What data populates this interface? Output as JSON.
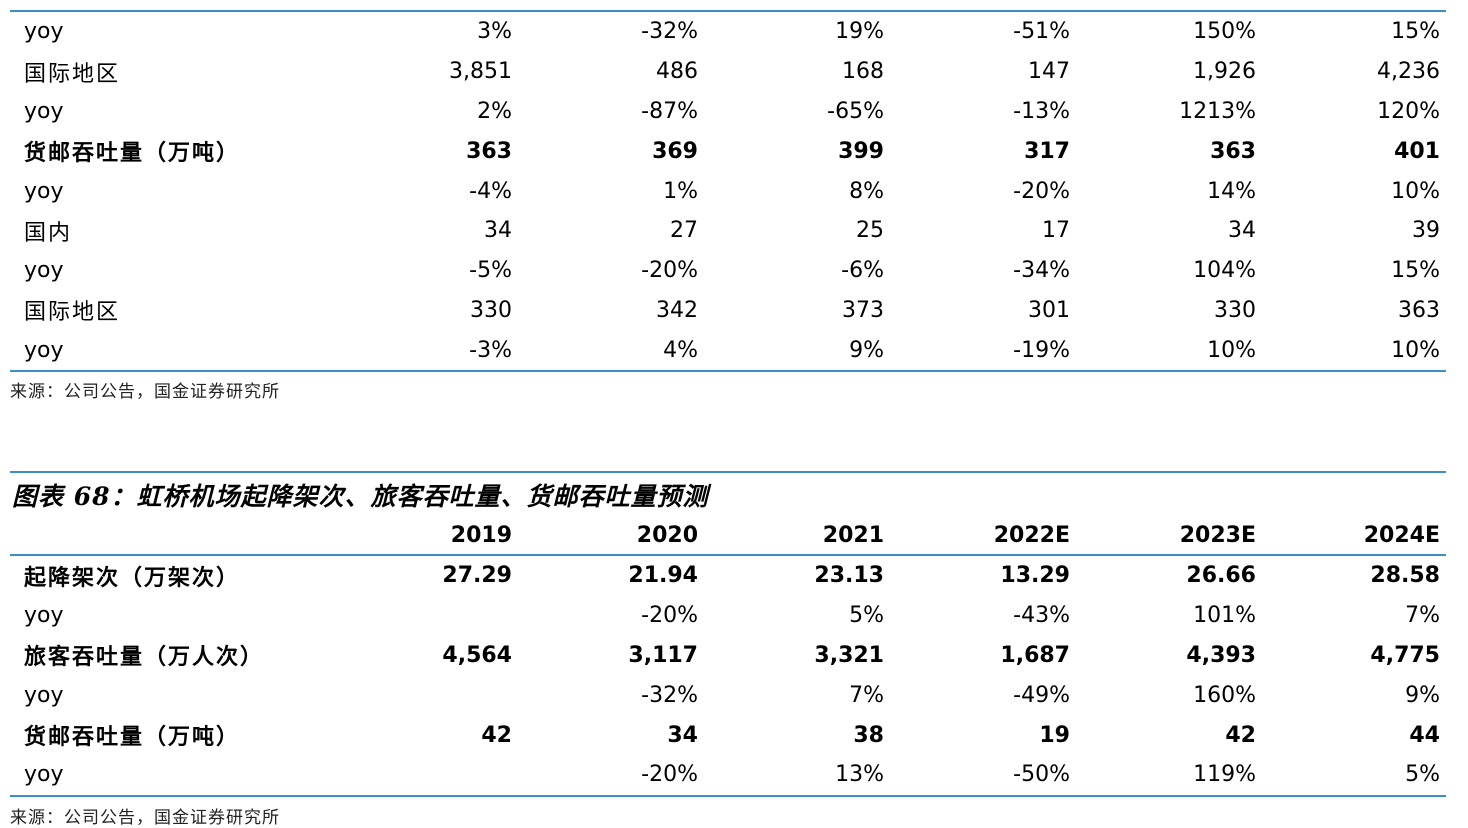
{
  "table1": {
    "rows": [
      {
        "label": "yoy",
        "values": [
          "3%",
          "-32%",
          "19%",
          "-51%",
          "150%",
          "15%"
        ],
        "bold": false
      },
      {
        "label": "国际地区",
        "values": [
          "3,851",
          "486",
          "168",
          "147",
          "1,926",
          "4,236"
        ],
        "bold": false
      },
      {
        "label": "yoy",
        "values": [
          "2%",
          "-87%",
          "-65%",
          "-13%",
          "1213%",
          "120%"
        ],
        "bold": false
      },
      {
        "label": "货邮吞吐量（万吨）",
        "values": [
          "363",
          "369",
          "399",
          "317",
          "363",
          "401"
        ],
        "bold": true
      },
      {
        "label": "yoy",
        "values": [
          "-4%",
          "1%",
          "8%",
          "-20%",
          "14%",
          "10%"
        ],
        "bold": false
      },
      {
        "label": "国内",
        "values": [
          "34",
          "27",
          "25",
          "17",
          "34",
          "39"
        ],
        "bold": false
      },
      {
        "label": "yoy",
        "values": [
          "-5%",
          "-20%",
          "-6%",
          "-34%",
          "104%",
          "15%"
        ],
        "bold": false
      },
      {
        "label": "国际地区",
        "values": [
          "330",
          "342",
          "373",
          "301",
          "330",
          "363"
        ],
        "bold": false
      },
      {
        "label": "yoy",
        "values": [
          "-3%",
          "4%",
          "9%",
          "-19%",
          "10%",
          "10%"
        ],
        "bold": false
      }
    ],
    "source": "来源：公司公告，国金证券研究所"
  },
  "table2": {
    "caption": "图表 68：虹桥机场起降架次、旅客吞吐量、货邮吞吐量预测",
    "headers": [
      "",
      "2019",
      "2020",
      "2021",
      "2022E",
      "2023E",
      "2024E"
    ],
    "rows": [
      {
        "label": "起降架次（万架次）",
        "values": [
          "27.29",
          "21.94",
          "23.13",
          "13.29",
          "26.66",
          "28.58"
        ],
        "bold": true
      },
      {
        "label": "yoy",
        "values": [
          "",
          "-20%",
          "5%",
          "-43%",
          "101%",
          "7%"
        ],
        "bold": false
      },
      {
        "label": "旅客吞吐量（万人次）",
        "values": [
          "4,564",
          "3,117",
          "3,321",
          "1,687",
          "4,393",
          "4,775"
        ],
        "bold": true
      },
      {
        "label": "yoy",
        "values": [
          "",
          "-32%",
          "7%",
          "-49%",
          "160%",
          "9%"
        ],
        "bold": false
      },
      {
        "label": "货邮吞吐量（万吨）",
        "values": [
          "42",
          "34",
          "38",
          "19",
          "42",
          "44"
        ],
        "bold": true
      },
      {
        "label": "yoy",
        "values": [
          "",
          "-20%",
          "13%",
          "-50%",
          "119%",
          "5%"
        ],
        "bold": false
      }
    ],
    "source": "来源：公司公告，国金证券研究所"
  },
  "colors": {
    "rule": "#3a8fc6"
  }
}
